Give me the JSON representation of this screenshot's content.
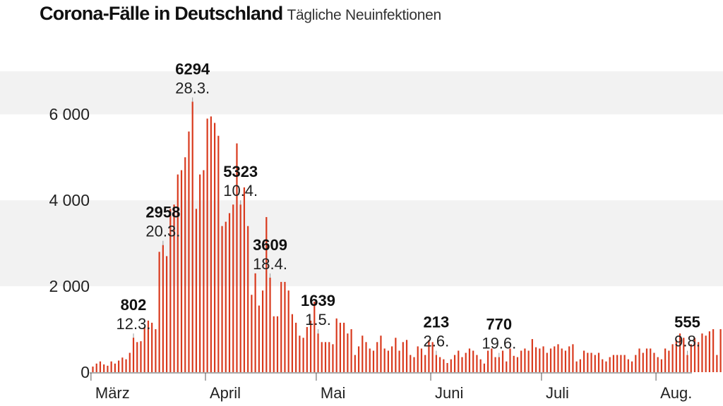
{
  "header": {
    "title": "Corona-Fälle in Deutschland",
    "subtitle": "Tägliche Neuinfektionen"
  },
  "colors": {
    "bar": "#d93a1e",
    "band": "#f2f2f2",
    "text": "#111111",
    "axis": "#555555"
  },
  "chart_data": {
    "type": "bar",
    "title": "Corona-Fälle in Deutschland",
    "subtitle": "Tägliche Neuinfektionen",
    "xlabel": "",
    "ylabel": "",
    "ylim": [
      0,
      7000
    ],
    "grid": false,
    "y_ticks": [
      {
        "value": 0,
        "label": "0"
      },
      {
        "value": 2000,
        "label": "2 000"
      },
      {
        "value": 4000,
        "label": "4 000"
      },
      {
        "value": 6000,
        "label": "6 000"
      }
    ],
    "x_start": "2020-03-01",
    "x_ticks": [
      {
        "date": "2020-03-01",
        "label": "März"
      },
      {
        "date": "2020-04-01",
        "label": "April"
      },
      {
        "date": "2020-05-01",
        "label": "Mai"
      },
      {
        "date": "2020-06-01",
        "label": "Juni"
      },
      {
        "date": "2020-07-01",
        "label": "Juli"
      },
      {
        "date": "2020-08-01",
        "label": "Aug."
      }
    ],
    "annotations": [
      {
        "date": "2020-03-12",
        "value": "802",
        "label": "12.3."
      },
      {
        "date": "2020-03-20",
        "value": "2958",
        "label": "20.3."
      },
      {
        "date": "2020-03-28",
        "value": "6294",
        "label": "28.3."
      },
      {
        "date": "2020-04-10",
        "value": "5323",
        "label": "10.4."
      },
      {
        "date": "2020-04-18",
        "value": "3609",
        "label": "18.4."
      },
      {
        "date": "2020-05-01",
        "value": "1639",
        "label": "1.5."
      },
      {
        "date": "2020-06-02",
        "value": "213",
        "label": "2.6."
      },
      {
        "date": "2020-06-19",
        "value": "770",
        "label": "19.6."
      },
      {
        "date": "2020-08-09",
        "value": "555",
        "label": "9.8."
      }
    ],
    "values": [
      130,
      200,
      250,
      180,
      150,
      250,
      200,
      270,
      340,
      300,
      450,
      802,
      700,
      720,
      1050,
      1200,
      1150,
      1000,
      2800,
      2958,
      2700,
      3800,
      3900,
      4600,
      4700,
      5000,
      5600,
      6294,
      3800,
      4600,
      4700,
      5900,
      5950,
      5800,
      5500,
      3400,
      3500,
      3700,
      3900,
      5323,
      3900,
      4300,
      3400,
      1800,
      2300,
      1550,
      1900,
      3609,
      2200,
      1300,
      1300,
      2100,
      2100,
      1900,
      1350,
      1150,
      850,
      800,
      1050,
      1200,
      1639,
      900,
      700,
      700,
      700,
      650,
      1250,
      1150,
      1150,
      900,
      1000,
      400,
      600,
      850,
      700,
      550,
      500,
      700,
      850,
      550,
      500,
      600,
      800,
      500,
      700,
      750,
      400,
      350,
      600,
      550,
      400,
      750,
      700,
      400,
      350,
      300,
      213,
      300,
      400,
      500,
      350,
      450,
      550,
      500,
      400,
      300,
      200,
      500,
      550,
      350,
      350,
      500,
      250,
      550,
      380,
      350,
      500,
      550,
      500,
      770,
      580,
      550,
      600,
      450,
      550,
      600,
      650,
      550,
      500,
      600,
      650,
      250,
      300,
      500,
      450,
      450,
      400,
      450,
      300,
      250,
      350,
      400,
      400,
      400,
      400,
      300,
      250,
      400,
      550,
      450,
      550,
      550,
      450,
      350,
      300,
      550,
      500,
      650,
      750,
      900,
      800,
      400,
      650,
      800,
      700,
      900,
      850,
      950,
      1000,
      400,
      1000,
      600,
      1150,
      1100,
      1150,
      555
    ]
  }
}
